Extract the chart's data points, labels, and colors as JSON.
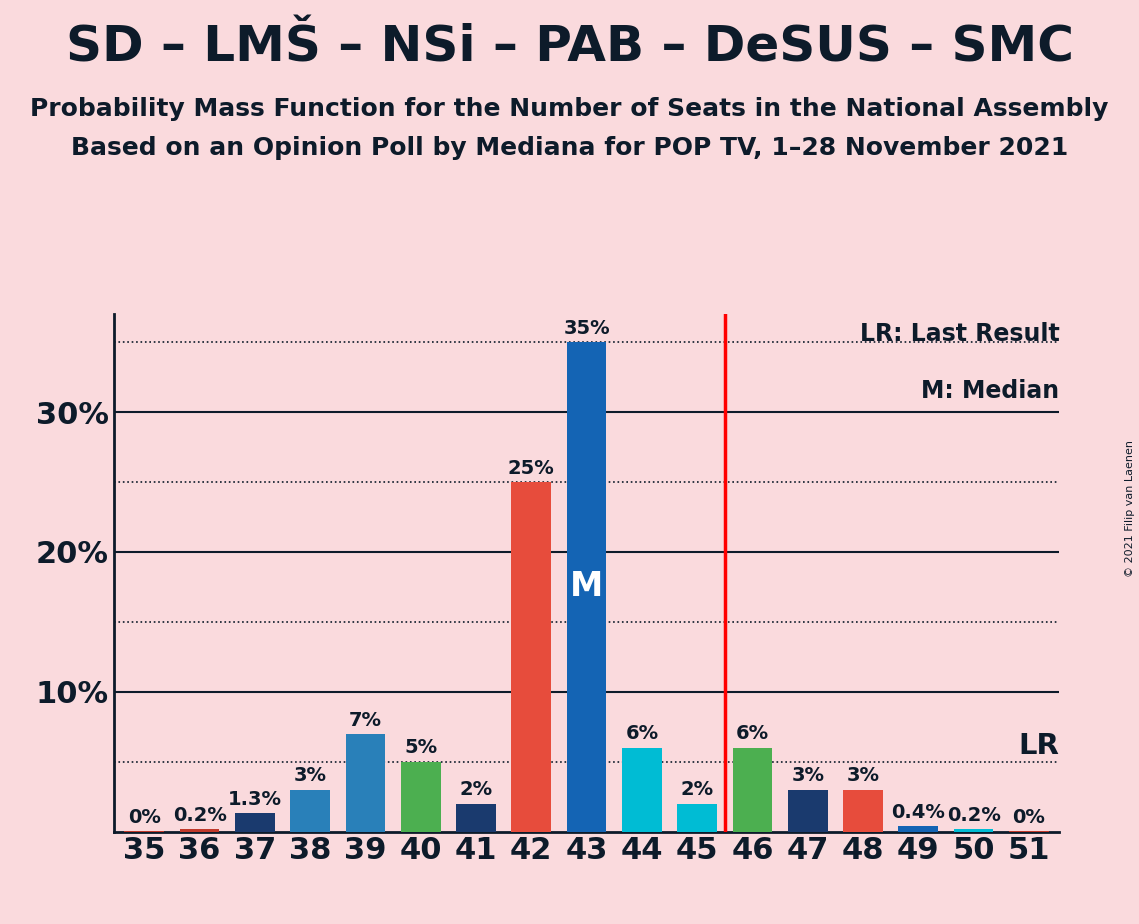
{
  "title": "SD – LMŠ – NSi – PAB – DeSUS – SMC",
  "subtitle1": "Probability Mass Function for the Number of Seats in the National Assembly",
  "subtitle2": "Based on an Opinion Poll by Mediana for POP TV, 1–28 November 2021",
  "copyright": "© 2021 Filip van Laenen",
  "background_color": "#fadadd",
  "seats": [
    35,
    36,
    37,
    38,
    39,
    40,
    41,
    42,
    43,
    44,
    45,
    46,
    47,
    48,
    49,
    50,
    51
  ],
  "values": [
    0.05,
    0.2,
    1.3,
    3.0,
    7.0,
    5.0,
    2.0,
    25.0,
    35.0,
    6.0,
    2.0,
    6.0,
    3.0,
    3.0,
    0.4,
    0.2,
    0.05
  ],
  "labels": [
    "0%",
    "0.2%",
    "1.3%",
    "3%",
    "7%",
    "5%",
    "2%",
    "25%",
    "35%",
    "6%",
    "2%",
    "6%",
    "3%",
    "3%",
    "0.4%",
    "0.2%",
    "0%"
  ],
  "bar_colors": [
    "#c0392b",
    "#c0392b",
    "#1a3a6e",
    "#2980b9",
    "#2980b9",
    "#4caf50",
    "#1a3a6e",
    "#e74c3c",
    "#1464b4",
    "#00bcd4",
    "#00bcd4",
    "#4caf50",
    "#1a3a6e",
    "#e74c3c",
    "#1464b4",
    "#00bcd4",
    "#c0392b"
  ],
  "median_seat": 43,
  "solid_levels": [
    10,
    20,
    30
  ],
  "dotted_levels": [
    5,
    15,
    25,
    35
  ],
  "lr_level": 5,
  "ytick_positions": [
    10,
    20,
    30
  ],
  "ytick_labels": [
    "10%",
    "20%",
    "30%"
  ],
  "ylim_max": 37,
  "title_color": "#0d1b2a",
  "title_fontsize": 36,
  "subtitle_fontsize": 18,
  "tick_fontsize": 22,
  "bar_label_fontsize": 14,
  "median_label_fontsize": 24,
  "lr_label": "LR",
  "lr_label_fontsize": 21,
  "legend_lr_text": "LR: Last Result",
  "legend_m_text": "M: Median",
  "legend_fontsize": 17
}
